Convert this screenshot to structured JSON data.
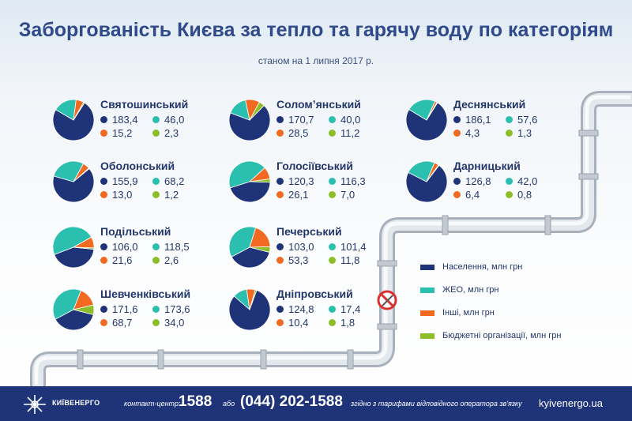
{
  "title": "Заборгованість Києва за тепло та гарячу воду по категоріям",
  "subtitle": "станом на 1 липня 2017 р.",
  "colors": {
    "population": "#1f3478",
    "zheo": "#2bbfb0",
    "other": "#f26a22",
    "budget": "#8cbe2a"
  },
  "chart_data": {
    "type": "pie",
    "unit": "млн грн",
    "categories": [
      "Населення",
      "ЖЕО",
      "Інші",
      "Бюджетні організації"
    ],
    "districts": [
      {
        "name": "Святошинський",
        "values": [
          183.4,
          46.0,
          15.2,
          2.3
        ],
        "labels": [
          "183,4",
          "46,0",
          "15,2",
          "2,3"
        ]
      },
      {
        "name": "Соломʼянський",
        "values": [
          170.7,
          40.0,
          28.5,
          11.2
        ],
        "labels": [
          "170,7",
          "40,0",
          "28,5",
          "11,2"
        ]
      },
      {
        "name": "Деснянський",
        "values": [
          186.1,
          57.6,
          4.3,
          1.3
        ],
        "labels": [
          "186,1",
          "57,6",
          "4,3",
          "1,3"
        ]
      },
      {
        "name": "Оболонський",
        "values": [
          155.9,
          68.2,
          13.0,
          1.2
        ],
        "labels": [
          "155,9",
          "68,2",
          "13,0",
          "1,2"
        ]
      },
      {
        "name": "Голосіївський",
        "values": [
          120.3,
          116.3,
          26.1,
          7.0
        ],
        "labels": [
          "120,3",
          "116,3",
          "26,1",
          "7,0"
        ]
      },
      {
        "name": "Дарницький",
        "values": [
          126.8,
          42.0,
          6.4,
          0.8
        ],
        "labels": [
          "126,8",
          "42,0",
          "6,4",
          "0,8"
        ]
      },
      {
        "name": "Подільський",
        "values": [
          106.0,
          118.5,
          21.6,
          2.6
        ],
        "labels": [
          "106,0",
          "118,5",
          "21,6",
          "2,6"
        ]
      },
      {
        "name": "Печерський",
        "values": [
          103.0,
          101.4,
          53.3,
          11.8
        ],
        "labels": [
          "103,0",
          "101,4",
          "53,3",
          "11,8"
        ]
      },
      {
        "name": "Шевченківський",
        "values": [
          171.6,
          173.6,
          68.7,
          34.0
        ],
        "labels": [
          "171,6",
          "173,6",
          "68,7",
          "34,0"
        ]
      },
      {
        "name": "Дніпровський",
        "values": [
          124.8,
          17.4,
          10.4,
          1.8
        ],
        "labels": [
          "124,8",
          "17,4",
          "10,4",
          "1,8"
        ]
      }
    ]
  },
  "legend": [
    {
      "label": "Населення, млн грн",
      "color": "#1f3478"
    },
    {
      "label": "ЖЕО, млн грн",
      "color": "#2bbfb0"
    },
    {
      "label": "Інші, млн грн",
      "color": "#f26a22"
    },
    {
      "label": "Бюджетні організації, млн грн",
      "color": "#8cbe2a"
    }
  ],
  "footer": {
    "brand": "КИЇВЕНЕРГО",
    "contact_label": "контакт-центр:",
    "short_number": "1588",
    "or_word": "або",
    "long_number": "(044) 202-1588",
    "tariff_note": "згідно з тарифами відповідного оператора зв'язку",
    "website": "kyivenergo.ua"
  }
}
